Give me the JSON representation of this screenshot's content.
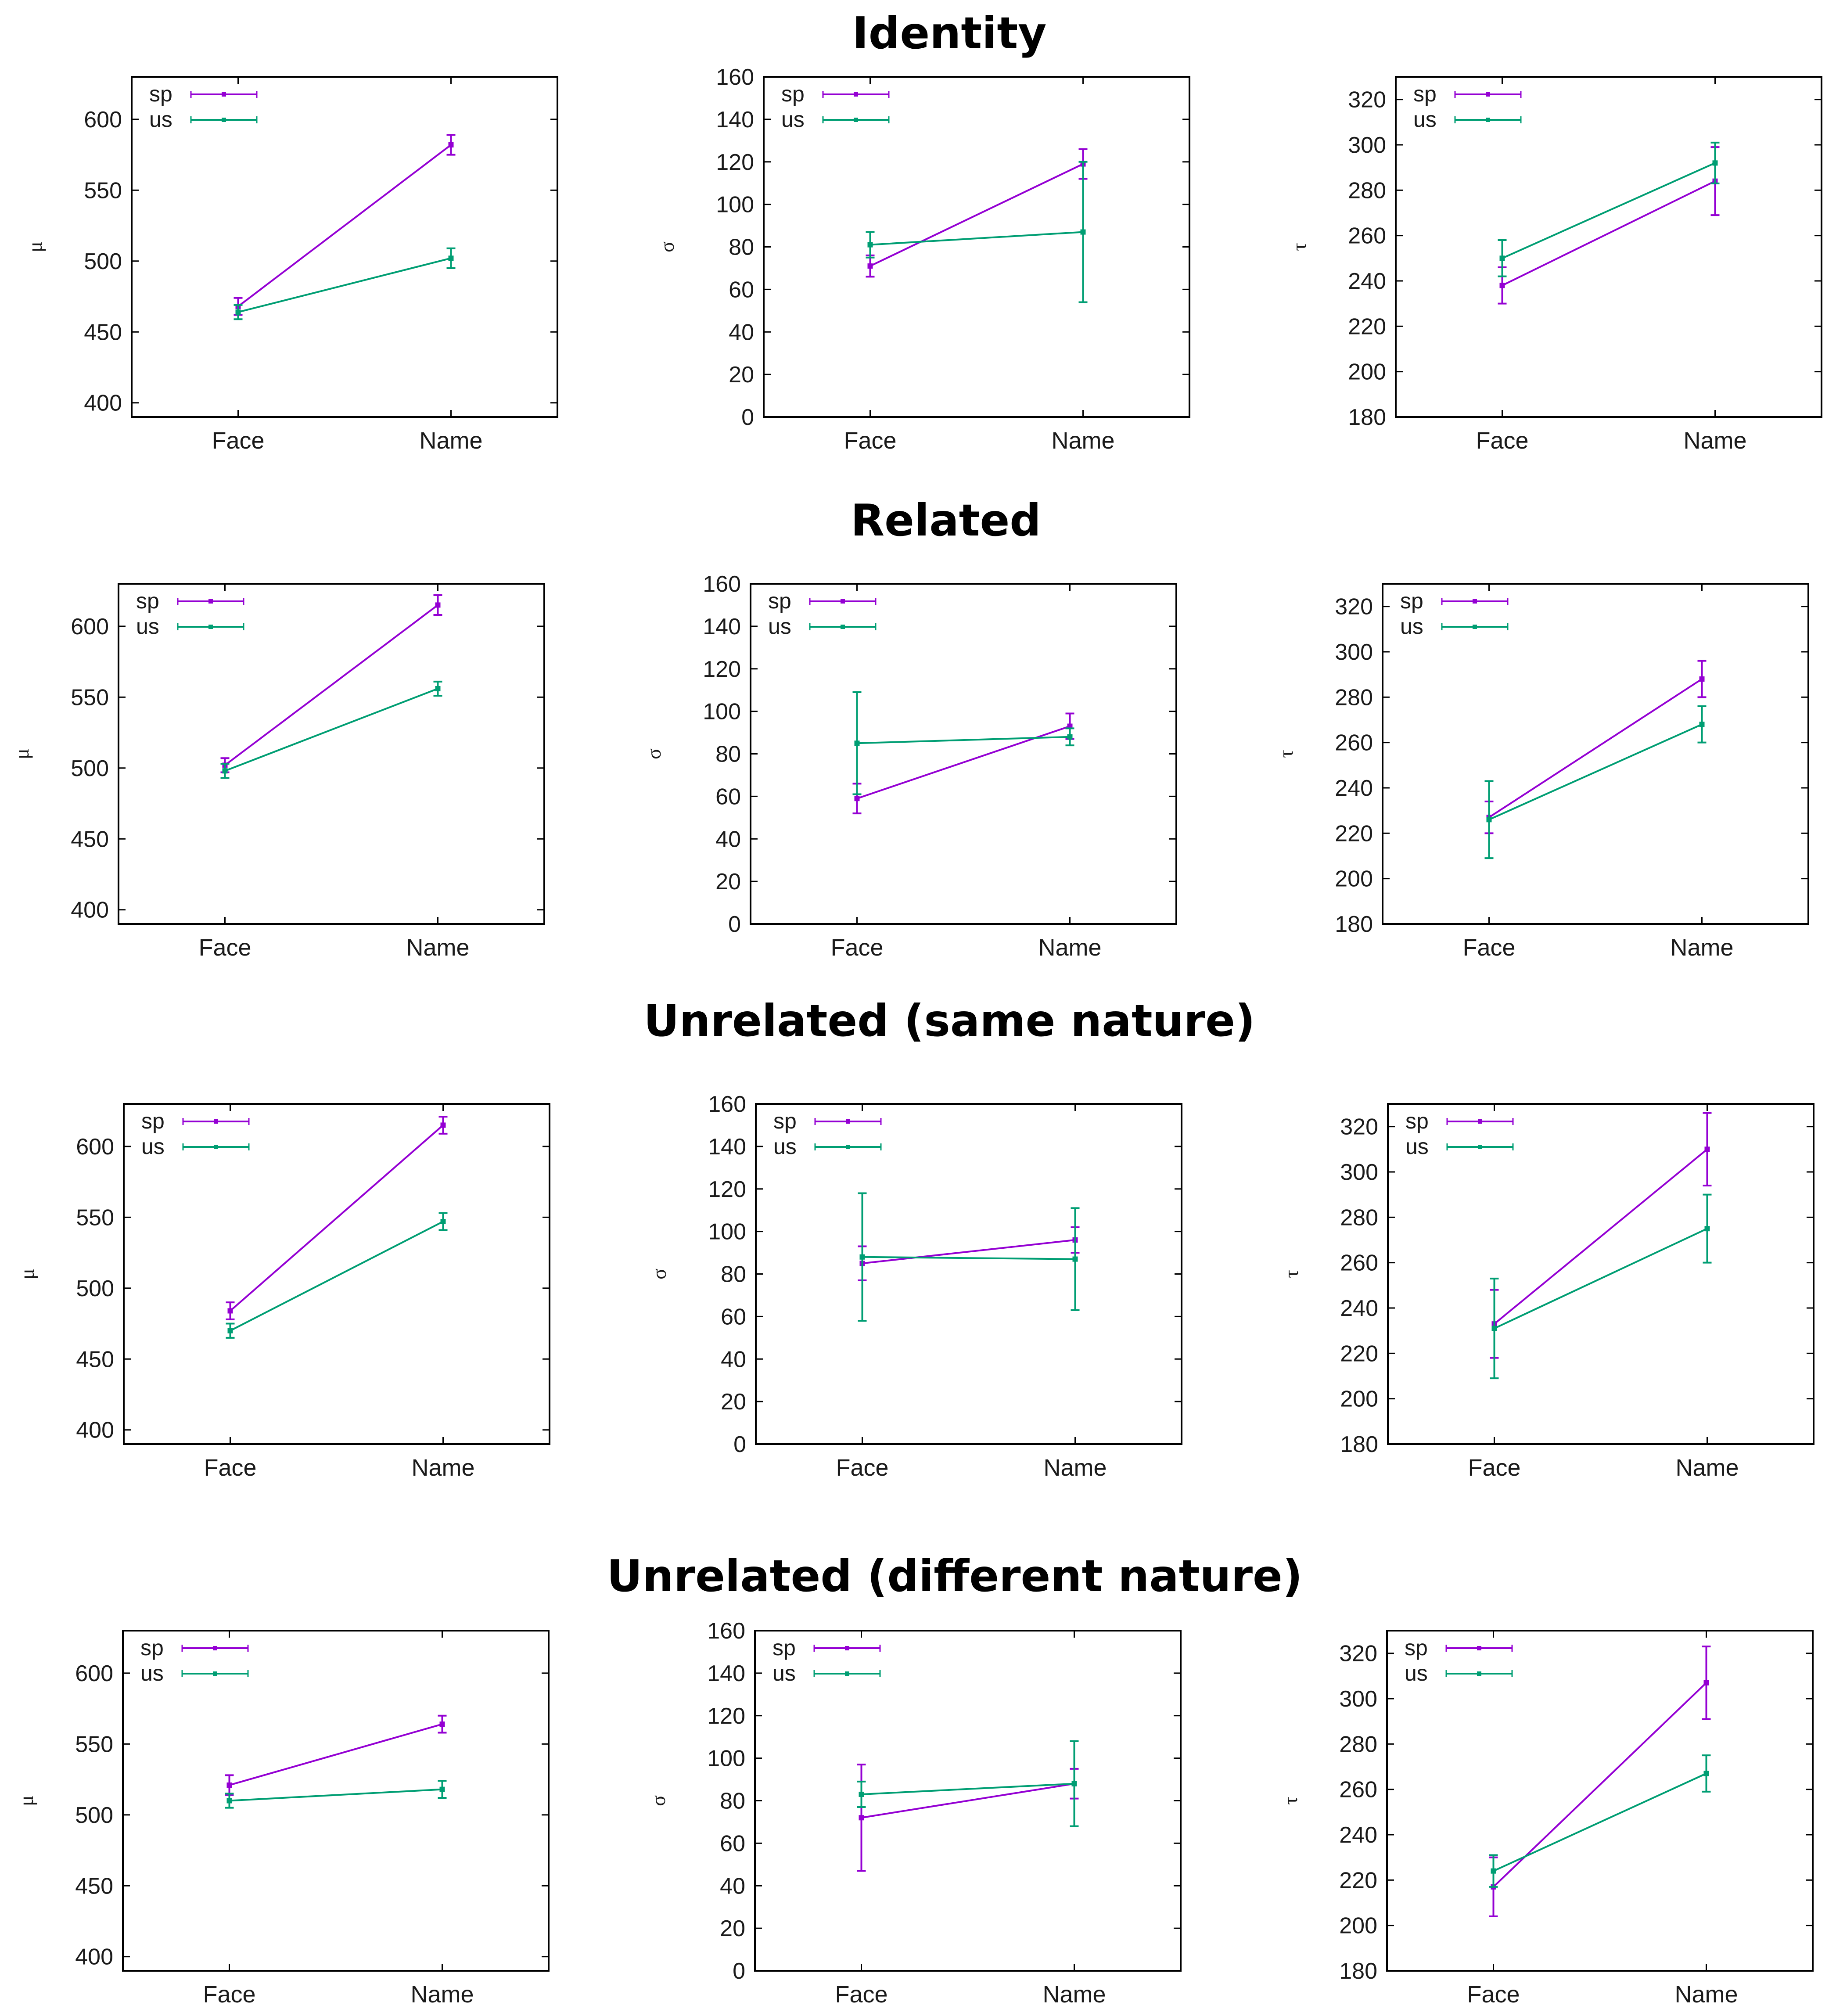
{
  "colors": {
    "sp": "#9400d3",
    "us": "#009e73"
  },
  "rows": [
    {
      "title": "Identity"
    },
    {
      "title": "Related"
    },
    {
      "title": "Unrelated (same nature)"
    },
    {
      "title": "Unrelated (different nature)"
    }
  ],
  "chart_data": [
    {
      "type": "line",
      "row": 0,
      "col": 0,
      "ylabel": "μ",
      "categories": [
        "Face",
        "Name"
      ],
      "ylim": [
        390,
        630
      ],
      "yticks": [
        400,
        450,
        500,
        550,
        600
      ],
      "series": [
        {
          "name": "sp",
          "values": [
            468,
            582
          ],
          "err": [
            6,
            7
          ]
        },
        {
          "name": "us",
          "values": [
            464,
            502
          ],
          "err": [
            5,
            7
          ]
        }
      ]
    },
    {
      "type": "line",
      "row": 0,
      "col": 1,
      "ylabel": "σ",
      "categories": [
        "Face",
        "Name"
      ],
      "ylim": [
        0,
        160
      ],
      "yticks": [
        0,
        20,
        40,
        60,
        80,
        100,
        120,
        140,
        160
      ],
      "series": [
        {
          "name": "sp",
          "values": [
            71,
            119
          ],
          "err": [
            5,
            7
          ]
        },
        {
          "name": "us",
          "values": [
            81,
            87
          ],
          "err": [
            6,
            33
          ]
        }
      ]
    },
    {
      "type": "line",
      "row": 0,
      "col": 2,
      "ylabel": "τ",
      "categories": [
        "Face",
        "Name"
      ],
      "ylim": [
        180,
        330
      ],
      "yticks": [
        180,
        200,
        220,
        240,
        260,
        280,
        300,
        320
      ],
      "series": [
        {
          "name": "sp",
          "values": [
            238,
            284
          ],
          "err": [
            8,
            15
          ]
        },
        {
          "name": "us",
          "values": [
            250,
            292
          ],
          "err": [
            8,
            9
          ]
        }
      ]
    },
    {
      "type": "line",
      "row": 1,
      "col": 0,
      "ylabel": "μ",
      "categories": [
        "Face",
        "Name"
      ],
      "ylim": [
        390,
        630
      ],
      "yticks": [
        400,
        450,
        500,
        550,
        600
      ],
      "series": [
        {
          "name": "sp",
          "values": [
            502,
            615
          ],
          "err": [
            5,
            7
          ]
        },
        {
          "name": "us",
          "values": [
            498,
            556
          ],
          "err": [
            5,
            5
          ]
        }
      ]
    },
    {
      "type": "line",
      "row": 1,
      "col": 1,
      "ylabel": "σ",
      "categories": [
        "Face",
        "Name"
      ],
      "ylim": [
        0,
        160
      ],
      "yticks": [
        0,
        20,
        40,
        60,
        80,
        100,
        120,
        140,
        160
      ],
      "series": [
        {
          "name": "sp",
          "values": [
            59,
            93
          ],
          "err": [
            7,
            6
          ]
        },
        {
          "name": "us",
          "values": [
            85,
            88
          ],
          "err": [
            24,
            4
          ]
        }
      ]
    },
    {
      "type": "line",
      "row": 1,
      "col": 2,
      "ylabel": "τ",
      "categories": [
        "Face",
        "Name"
      ],
      "ylim": [
        180,
        330
      ],
      "yticks": [
        180,
        200,
        220,
        240,
        260,
        280,
        300,
        320
      ],
      "series": [
        {
          "name": "sp",
          "values": [
            227,
            288
          ],
          "err": [
            7,
            8
          ]
        },
        {
          "name": "us",
          "values": [
            226,
            268
          ],
          "err": [
            17,
            8
          ]
        }
      ]
    },
    {
      "type": "line",
      "row": 2,
      "col": 0,
      "ylabel": "μ",
      "categories": [
        "Face",
        "Name"
      ],
      "ylim": [
        390,
        630
      ],
      "yticks": [
        400,
        450,
        500,
        550,
        600
      ],
      "series": [
        {
          "name": "sp",
          "values": [
            484,
            615
          ],
          "err": [
            6,
            6
          ]
        },
        {
          "name": "us",
          "values": [
            470,
            547
          ],
          "err": [
            5,
            6
          ]
        }
      ]
    },
    {
      "type": "line",
      "row": 2,
      "col": 1,
      "ylabel": "σ",
      "categories": [
        "Face",
        "Name"
      ],
      "ylim": [
        0,
        160
      ],
      "yticks": [
        0,
        20,
        40,
        60,
        80,
        100,
        120,
        140,
        160
      ],
      "series": [
        {
          "name": "sp",
          "values": [
            85,
            96
          ],
          "err": [
            8,
            6
          ]
        },
        {
          "name": "us",
          "values": [
            88,
            87
          ],
          "err": [
            30,
            24
          ]
        }
      ]
    },
    {
      "type": "line",
      "row": 2,
      "col": 2,
      "ylabel": "τ",
      "categories": [
        "Face",
        "Name"
      ],
      "ylim": [
        180,
        330
      ],
      "yticks": [
        180,
        200,
        220,
        240,
        260,
        280,
        300,
        320
      ],
      "series": [
        {
          "name": "sp",
          "values": [
            233,
            310
          ],
          "err": [
            15,
            16
          ]
        },
        {
          "name": "us",
          "values": [
            231,
            275
          ],
          "err": [
            22,
            15
          ]
        }
      ]
    },
    {
      "type": "line",
      "row": 3,
      "col": 0,
      "ylabel": "μ",
      "categories": [
        "Face",
        "Name"
      ],
      "ylim": [
        390,
        630
      ],
      "yticks": [
        400,
        450,
        500,
        550,
        600
      ],
      "series": [
        {
          "name": "sp",
          "values": [
            521,
            564
          ],
          "err": [
            7,
            6
          ]
        },
        {
          "name": "us",
          "values": [
            510,
            518
          ],
          "err": [
            5,
            6
          ]
        }
      ]
    },
    {
      "type": "line",
      "row": 3,
      "col": 1,
      "ylabel": "σ",
      "categories": [
        "Face",
        "Name"
      ],
      "ylim": [
        0,
        160
      ],
      "yticks": [
        0,
        20,
        40,
        60,
        80,
        100,
        120,
        140,
        160
      ],
      "series": [
        {
          "name": "sp",
          "values": [
            72,
            88
          ],
          "err": [
            25,
            7
          ]
        },
        {
          "name": "us",
          "values": [
            83,
            88
          ],
          "err": [
            6,
            20
          ]
        }
      ]
    },
    {
      "type": "line",
      "row": 3,
      "col": 2,
      "ylabel": "τ",
      "categories": [
        "Face",
        "Name"
      ],
      "ylim": [
        180,
        330
      ],
      "yticks": [
        180,
        200,
        220,
        240,
        260,
        280,
        300,
        320
      ],
      "series": [
        {
          "name": "sp",
          "values": [
            217,
            307
          ],
          "err": [
            13,
            16
          ]
        },
        {
          "name": "us",
          "values": [
            224,
            267
          ],
          "err": [
            7,
            8
          ]
        }
      ]
    }
  ]
}
